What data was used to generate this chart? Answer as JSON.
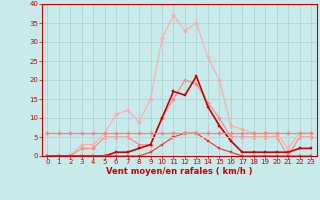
{
  "xlabel": "Vent moyen/en rafales ( km/h )",
  "background_color": "#c8eaea",
  "grid_color": "#aacccc",
  "hours": [
    0,
    1,
    2,
    3,
    4,
    5,
    6,
    7,
    8,
    9,
    10,
    11,
    12,
    13,
    14,
    15,
    16,
    17,
    18,
    19,
    20,
    21,
    22,
    23
  ],
  "series": [
    {
      "color": "#ffaaaa",
      "linewidth": 0.8,
      "markersize": 2.0,
      "marker": "D",
      "values": [
        0,
        0,
        0,
        3,
        3,
        6,
        11,
        12,
        9,
        15,
        31,
        37,
        33,
        35,
        26,
        20,
        8,
        7,
        6,
        6,
        6,
        2,
        6,
        6
      ]
    },
    {
      "color": "#ff8888",
      "linewidth": 0.8,
      "markersize": 2.0,
      "marker": "D",
      "values": [
        0,
        0,
        0,
        2,
        2,
        5,
        5,
        5,
        3,
        3,
        10,
        15,
        20,
        19,
        14,
        10,
        5,
        5,
        5,
        5,
        5,
        0,
        5,
        5
      ]
    },
    {
      "color": "#cc0000",
      "linewidth": 1.2,
      "markersize": 2.0,
      "marker": "s",
      "values": [
        0,
        0,
        0,
        0,
        0,
        0,
        1,
        1,
        2,
        3,
        10,
        17,
        16,
        21,
        13,
        8,
        4,
        1,
        1,
        1,
        1,
        1,
        2,
        2
      ]
    },
    {
      "color": "#ee3333",
      "linewidth": 0.8,
      "markersize": 2.0,
      "marker": "s",
      "values": [
        0,
        0,
        0,
        0,
        0,
        0,
        0,
        0,
        0,
        1,
        3,
        5,
        6,
        6,
        4,
        2,
        1,
        0,
        0,
        0,
        0,
        0,
        0,
        0
      ]
    },
    {
      "color": "#ee8888",
      "linewidth": 0.9,
      "markersize": 2.0,
      "marker": "D",
      "values": [
        6,
        6,
        6,
        6,
        6,
        6,
        6,
        6,
        6,
        6,
        6,
        6,
        6,
        6,
        6,
        6,
        6,
        6,
        6,
        6,
        6,
        6,
        6,
        6
      ]
    },
    {
      "color": "#ffbbbb",
      "linewidth": 0.7,
      "markersize": 0,
      "marker": "None",
      "values": [
        5,
        5,
        5,
        5,
        5,
        5,
        5,
        5,
        5,
        5,
        5,
        5,
        5,
        5,
        5,
        5,
        5,
        5,
        5,
        5,
        5,
        5,
        5,
        5
      ]
    }
  ],
  "xlim": [
    -0.5,
    23.5
  ],
  "ylim": [
    0,
    40
  ],
  "yticks": [
    0,
    5,
    10,
    15,
    20,
    25,
    30,
    35,
    40
  ],
  "xticks": [
    0,
    1,
    2,
    3,
    4,
    5,
    6,
    7,
    8,
    9,
    10,
    11,
    12,
    13,
    14,
    15,
    16,
    17,
    18,
    19,
    20,
    21,
    22,
    23
  ],
  "tick_color": "#cc0000",
  "label_color": "#cc0000",
  "axis_color": "#cc0000",
  "xlabel_fontsize": 6.0,
  "tick_fontsize": 5.0
}
